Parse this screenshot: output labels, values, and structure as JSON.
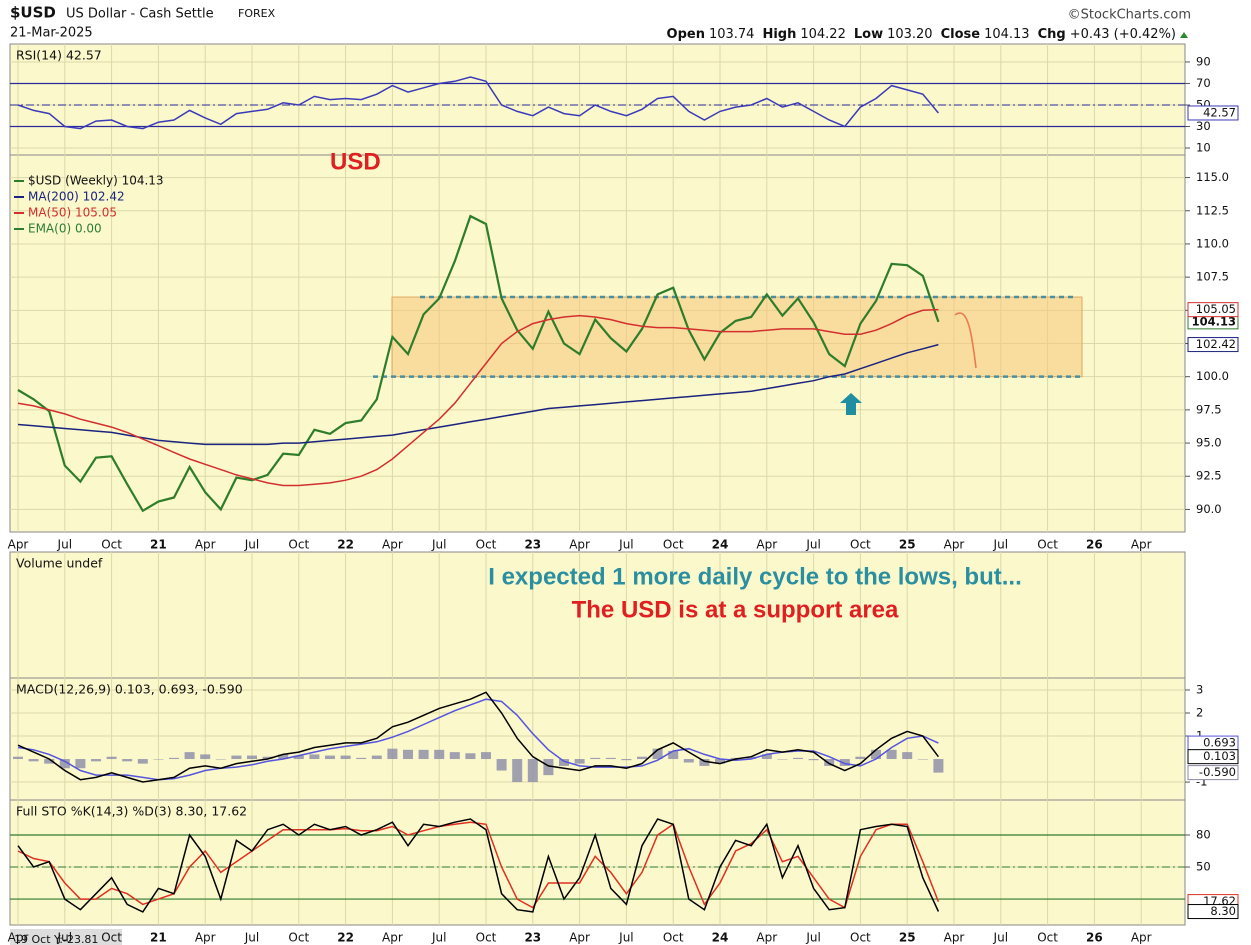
{
  "header": {
    "symbol": "$USD",
    "name": "US Dollar - Cash Settle",
    "exchange": "FOREX",
    "date": "21-Mar-2025",
    "source": "©StockCharts.com",
    "quote": [
      [
        "Open",
        "103.74"
      ],
      [
        "High",
        "104.22"
      ],
      [
        "Low",
        "103.20"
      ],
      [
        "Close",
        "104.13"
      ],
      [
        "Chg",
        "+0.43 (+0.42%)"
      ]
    ]
  },
  "crosshair_readout": "19 Oct Y:-23.81",
  "chart_data": [
    {
      "type": "line",
      "label": "RSI(14) 42.57",
      "ylim": [
        3.5,
        106.7
      ],
      "yticks": [
        90,
        70,
        50,
        30,
        10
      ],
      "hlines": [
        70,
        30
      ],
      "dashed_hlines": [
        50
      ],
      "series": [
        {
          "name": "RSI(14)",
          "color": "#3a3ab8",
          "last": 42.57,
          "values": [
            50,
            45,
            42,
            30,
            28,
            35,
            36,
            30,
            28,
            34,
            36,
            45,
            38,
            32,
            42,
            44,
            46,
            52,
            50,
            58,
            55,
            56,
            55,
            60,
            68,
            62,
            66,
            70,
            72,
            76,
            72,
            50,
            44,
            40,
            48,
            42,
            40,
            50,
            44,
            40,
            46,
            56,
            58,
            44,
            36,
            44,
            48,
            50,
            56,
            48,
            52,
            44,
            36,
            30,
            48,
            56,
            68,
            64,
            60,
            42.57,
            null,
            null,
            null,
            null,
            null,
            null,
            null,
            null,
            null,
            null,
            null,
            null,
            null
          ]
        }
      ]
    },
    {
      "type": "line",
      "annotation": "USD",
      "ylim": [
        88.3,
        116.7
      ],
      "yticks": [
        {
          "value": 90,
          "label": "90.0"
        },
        92.5,
        {
          "value": 95,
          "label": "95.0"
        },
        97.5,
        {
          "value": 100,
          "label": "100.0"
        },
        102.5,
        {
          "value": 105,
          "label": "105.0"
        },
        107.5,
        {
          "value": 110,
          "label": "110.0"
        },
        112.5,
        {
          "value": 115,
          "label": "115.0"
        }
      ],
      "support_band": [
        100,
        106
      ],
      "categories": [
        "Apr",
        null,
        null,
        "Jul",
        null,
        null,
        "Oct",
        null,
        null,
        "21",
        null,
        null,
        "Apr",
        null,
        null,
        "Jul",
        null,
        null,
        "Oct",
        null,
        null,
        "22",
        null,
        null,
        "Apr",
        null,
        null,
        "Jul",
        null,
        null,
        "Oct",
        null,
        null,
        "23",
        null,
        null,
        "Apr",
        null,
        null,
        "Jul",
        null,
        null,
        "Oct",
        null,
        null,
        "24",
        null,
        null,
        "Apr",
        null,
        null,
        "Jul",
        null,
        null,
        "Oct",
        null,
        null,
        "25",
        null,
        null,
        "Apr",
        null,
        null,
        "Jul",
        null,
        null,
        "Oct",
        null,
        null,
        "26",
        null,
        null,
        "Apr"
      ],
      "series": [
        {
          "name": "$USD (Weekly)",
          "label": "$USD (Weekly) 104.13",
          "color": "#2f7d2a",
          "last": 104.13,
          "values": [
            99.0,
            98.3,
            97.4,
            93.3,
            92.1,
            93.9,
            94.0,
            91.9,
            89.9,
            90.6,
            90.9,
            93.2,
            91.3,
            90.0,
            92.4,
            92.2,
            92.6,
            94.2,
            94.1,
            96.0,
            95.7,
            96.5,
            96.7,
            98.3,
            103.0,
            101.7,
            104.7,
            105.9,
            108.7,
            112.1,
            111.5,
            105.9,
            103.5,
            102.1,
            104.9,
            102.5,
            101.7,
            104.3,
            102.9,
            101.9,
            103.6,
            106.2,
            106.7,
            103.5,
            101.3,
            103.3,
            104.2,
            104.5,
            106.2,
            104.6,
            105.9,
            104.1,
            101.7,
            100.8,
            104.0,
            105.7,
            108.5,
            108.4,
            107.6,
            104.13,
            null,
            null,
            null,
            null,
            null,
            null,
            null,
            null,
            null,
            null,
            null,
            null,
            null
          ]
        },
        {
          "name": "MA(200)",
          "label": "MA(200) 102.42",
          "color": "#1a237e",
          "last": 102.42,
          "values": [
            96.4,
            96.3,
            96.2,
            96.1,
            96.0,
            95.9,
            95.8,
            95.6,
            95.4,
            95.2,
            95.1,
            95.0,
            94.9,
            94.9,
            94.9,
            94.9,
            94.9,
            95.0,
            95.0,
            95.1,
            95.2,
            95.3,
            95.4,
            95.5,
            95.6,
            95.8,
            96.0,
            96.2,
            96.4,
            96.6,
            96.8,
            97.0,
            97.2,
            97.4,
            97.6,
            97.7,
            97.8,
            97.9,
            98.0,
            98.1,
            98.2,
            98.3,
            98.4,
            98.5,
            98.6,
            98.7,
            98.8,
            98.9,
            99.1,
            99.3,
            99.5,
            99.7,
            100.0,
            100.2,
            100.6,
            101.0,
            101.4,
            101.8,
            102.1,
            102.42,
            null,
            null,
            null,
            null,
            null,
            null,
            null,
            null,
            null,
            null,
            null,
            null,
            null
          ]
        },
        {
          "name": "MA(50)",
          "label": "MA(50) 105.05",
          "color": "#d32f2f",
          "last": 105.05,
          "values": [
            98.0,
            97.8,
            97.5,
            97.2,
            96.8,
            96.5,
            96.2,
            95.8,
            95.3,
            94.8,
            94.3,
            93.8,
            93.4,
            93.0,
            92.6,
            92.3,
            92.0,
            91.8,
            91.8,
            91.9,
            92.0,
            92.2,
            92.5,
            93.0,
            93.8,
            94.8,
            95.8,
            96.8,
            98.0,
            99.5,
            101.0,
            102.5,
            103.4,
            104.0,
            104.3,
            104.5,
            104.6,
            104.5,
            104.3,
            104.0,
            103.8,
            103.7,
            103.7,
            103.6,
            103.5,
            103.4,
            103.4,
            103.4,
            103.5,
            103.6,
            103.6,
            103.6,
            103.4,
            103.2,
            103.2,
            103.5,
            104.0,
            104.6,
            105.0,
            105.05,
            null,
            null,
            null,
            null,
            null,
            null,
            null,
            null,
            null,
            null,
            null,
            null,
            null
          ]
        }
      ],
      "legend_extra": [
        {
          "label": "EMA(0) 0.00",
          "color": "#2e7d32"
        }
      ]
    },
    {
      "type": "none",
      "label": "Volume undef",
      "annotations": [
        "I expected 1 more daily cycle to the lows, but...",
        "The USD is at a support area"
      ]
    },
    {
      "type": "line",
      "label": "MACD(12,26,9) 0.103, 0.693, -0.590",
      "ylim": [
        -1.78,
        3.52
      ],
      "yticks": [
        3,
        2,
        1,
        -1
      ],
      "series": [
        {
          "name": "Histogram",
          "style": "bar",
          "color": "#8a8aa8",
          "last": -0.59,
          "last_label": "-0.590",
          "values": [
            0.1,
            -0.1,
            -0.2,
            -0.4,
            -0.4,
            -0.1,
            0.1,
            -0.1,
            -0.2,
            0.0,
            0.05,
            0.3,
            0.2,
            0.0,
            0.15,
            0.15,
            0.1,
            0.2,
            0.15,
            0.2,
            0.15,
            0.15,
            0.05,
            0.15,
            0.45,
            0.4,
            0.4,
            0.4,
            0.3,
            0.25,
            0.3,
            -0.5,
            -1.0,
            -1.0,
            -0.7,
            -0.3,
            -0.2,
            0.05,
            0.05,
            -0.05,
            0.1,
            0.45,
            0.35,
            -0.15,
            -0.3,
            -0.2,
            0.05,
            0.1,
            0.2,
            0.0,
            0.05,
            -0.05,
            -0.3,
            -0.3,
            0.1,
            0.4,
            0.4,
            0.3,
            0.0,
            -0.59,
            null,
            null,
            null,
            null,
            null,
            null,
            null,
            null,
            null,
            null,
            null,
            null,
            null
          ]
        },
        {
          "name": "Signal",
          "color": "#5555dd",
          "last": 0.693,
          "values": [
            0.5,
            0.4,
            0.2,
            -0.1,
            -0.5,
            -0.7,
            -0.7,
            -0.7,
            -0.8,
            -0.9,
            -0.85,
            -0.7,
            -0.5,
            -0.4,
            -0.35,
            -0.25,
            -0.1,
            0.0,
            0.15,
            0.3,
            0.45,
            0.55,
            0.65,
            0.75,
            0.95,
            1.2,
            1.5,
            1.8,
            2.1,
            2.35,
            2.6,
            2.5,
            1.9,
            1.1,
            0.4,
            -0.1,
            -0.3,
            -0.35,
            -0.35,
            -0.35,
            -0.3,
            -0.05,
            0.35,
            0.45,
            0.2,
            0.0,
            -0.05,
            0.0,
            0.2,
            0.3,
            0.35,
            0.35,
            0.1,
            -0.2,
            -0.3,
            0.0,
            0.5,
            0.9,
            1.0,
            0.693,
            null,
            null,
            null,
            null,
            null,
            null,
            null,
            null,
            null,
            null,
            null,
            null,
            null
          ]
        },
        {
          "name": "MACD",
          "color": "#000000",
          "last": 0.103,
          "values": [
            0.6,
            0.3,
            0.0,
            -0.5,
            -0.9,
            -0.8,
            -0.6,
            -0.8,
            -1.0,
            -0.9,
            -0.8,
            -0.4,
            -0.3,
            -0.4,
            -0.2,
            -0.1,
            0.0,
            0.2,
            0.3,
            0.5,
            0.6,
            0.7,
            0.7,
            0.9,
            1.4,
            1.6,
            1.9,
            2.2,
            2.4,
            2.6,
            2.9,
            2.0,
            0.9,
            0.1,
            -0.3,
            -0.4,
            -0.5,
            -0.3,
            -0.3,
            -0.4,
            -0.2,
            0.4,
            0.7,
            0.3,
            -0.1,
            -0.2,
            0.0,
            0.1,
            0.4,
            0.3,
            0.4,
            0.3,
            -0.2,
            -0.5,
            -0.2,
            0.4,
            0.9,
            1.2,
            1.0,
            0.103,
            null,
            null,
            null,
            null,
            null,
            null,
            null,
            null,
            null,
            null,
            null,
            null,
            null
          ]
        }
      ]
    },
    {
      "type": "line",
      "label": "Full STO %K(14,3) %D(3) 8.30, 17.62",
      "ylim": [
        -4.3,
        112.8
      ],
      "yticks": [
        80,
        50
      ],
      "hlines": [
        80,
        20
      ],
      "dashed_hlines": [
        50
      ],
      "categories": [
        "Apr",
        null,
        null,
        "Jul",
        null,
        null,
        "Oct",
        null,
        null,
        "21",
        null,
        null,
        "Apr",
        null,
        null,
        "Jul",
        null,
        null,
        "Oct",
        null,
        null,
        "22",
        null,
        null,
        "Apr",
        null,
        null,
        "Jul",
        null,
        null,
        "Oct",
        null,
        null,
        "23",
        null,
        null,
        "Apr",
        null,
        null,
        "Jul",
        null,
        null,
        "Oct",
        null,
        null,
        "24",
        null,
        null,
        "Apr",
        null,
        null,
        "Jul",
        null,
        null,
        "Oct",
        null,
        null,
        "25",
        null,
        null,
        "Apr",
        null,
        null,
        "Jul",
        null,
        null,
        "Oct",
        null,
        null,
        "26",
        null,
        null,
        "Apr"
      ],
      "series": [
        {
          "name": "%D(3)",
          "color": "#e03020",
          "last": 17.62,
          "values": [
            65,
            58,
            55,
            35,
            20,
            20,
            30,
            25,
            15,
            20,
            25,
            50,
            65,
            45,
            55,
            65,
            75,
            85,
            85,
            85,
            85,
            86,
            84,
            84,
            88,
            80,
            84,
            88,
            90,
            92,
            90,
            50,
            20,
            12,
            35,
            35,
            35,
            60,
            45,
            25,
            45,
            80,
            90,
            50,
            15,
            35,
            65,
            72,
            85,
            55,
            60,
            40,
            20,
            12,
            60,
            85,
            90,
            90,
            55,
            17.62,
            null,
            null,
            null,
            null,
            null,
            null,
            null,
            null,
            null,
            null,
            null,
            null,
            null
          ]
        },
        {
          "name": "%K(14,3)",
          "color": "#000000",
          "last": 8.3,
          "last_label": "8.30",
          "values": [
            70,
            50,
            55,
            20,
            10,
            25,
            40,
            15,
            8,
            30,
            25,
            80,
            60,
            20,
            75,
            65,
            85,
            90,
            80,
            90,
            85,
            88,
            80,
            85,
            92,
            70,
            90,
            88,
            92,
            95,
            85,
            25,
            10,
            8,
            60,
            20,
            40,
            80,
            30,
            15,
            70,
            95,
            90,
            20,
            10,
            50,
            75,
            70,
            90,
            40,
            70,
            30,
            10,
            12,
            85,
            88,
            90,
            88,
            40,
            8.3,
            null,
            null,
            null,
            null,
            null,
            null,
            null,
            null,
            null,
            null,
            null,
            null,
            null
          ]
        }
      ]
    }
  ]
}
